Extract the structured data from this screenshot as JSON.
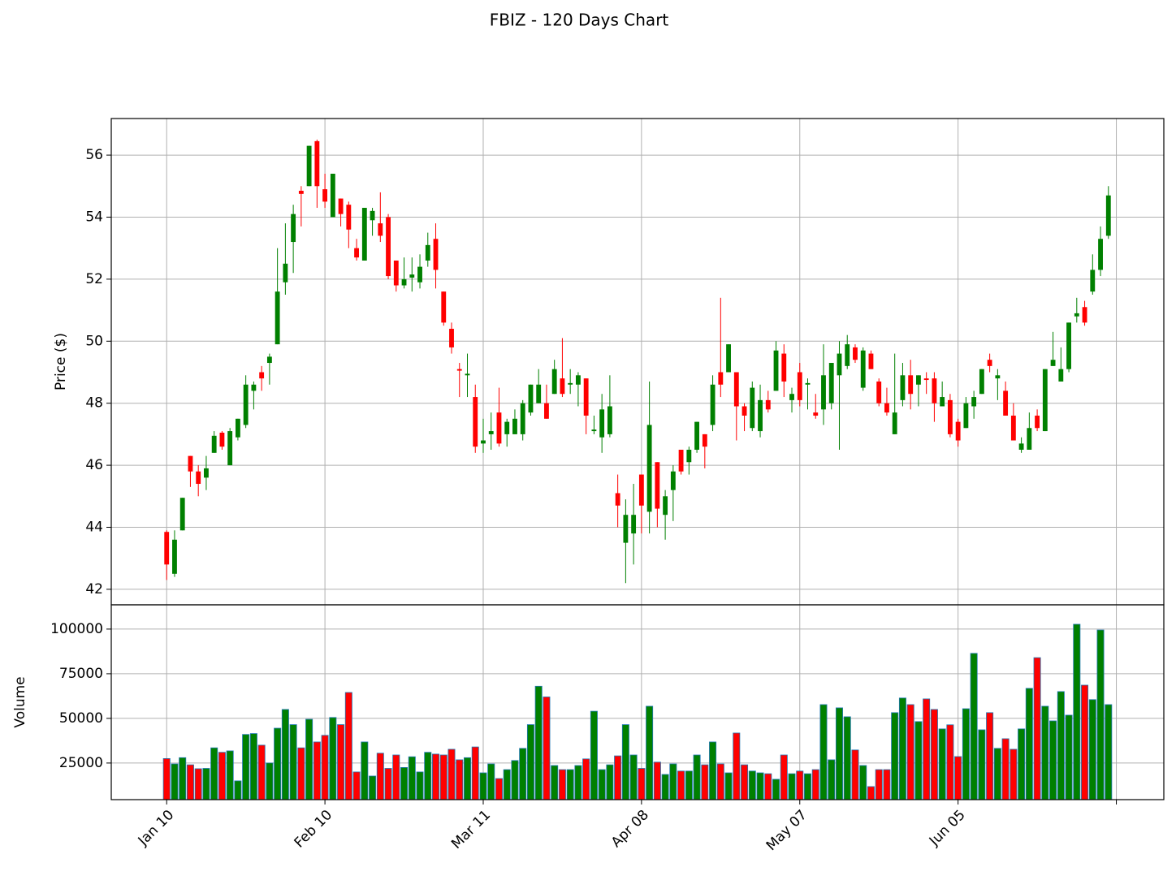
{
  "title": "FBIZ - 120 Days Chart",
  "chart_data": [
    {
      "type": "candlestick",
      "ylabel": "Price ($)",
      "ylim": [
        41.5,
        57.18
      ],
      "yticks": [
        42,
        44,
        46,
        48,
        50,
        52,
        54,
        56
      ],
      "grid": true,
      "up_color": "green",
      "down_color": "red",
      "open": [
        43.85,
        42.5,
        43.9,
        46.3,
        45.8,
        45.6,
        46.4,
        47.05,
        46.0,
        46.9,
        47.3,
        48.4,
        49.0,
        49.3,
        49.9,
        51.9,
        53.2,
        54.85,
        55.0,
        56.45,
        54.9,
        54.0,
        54.6,
        54.4,
        53.0,
        52.6,
        53.9,
        53.8,
        54.0,
        52.6,
        51.8,
        52.05,
        51.9,
        52.6,
        53.3,
        51.6,
        50.4,
        49.1,
        48.9,
        48.2,
        46.7,
        47.0,
        47.7,
        47.0,
        47.0,
        47.0,
        47.7,
        48.0,
        48.0,
        48.3,
        48.8,
        48.6,
        48.6,
        48.8,
        47.1,
        46.9,
        47.0,
        45.1,
        43.5,
        43.8,
        45.7,
        44.5,
        46.1,
        44.4,
        45.2,
        46.5,
        46.1,
        46.5,
        47.0,
        47.3,
        49.0,
        49.0,
        49.0,
        47.9,
        47.2,
        47.1,
        48.1,
        48.4,
        49.6,
        48.1,
        49.0,
        48.6,
        47.7,
        47.8,
        48.0,
        48.9,
        49.2,
        49.8,
        48.5,
        49.6,
        48.7,
        48.0,
        47.0,
        48.1,
        48.9,
        48.6,
        48.8,
        48.8,
        47.9,
        48.1,
        47.4,
        47.2,
        47.9,
        48.3,
        49.4,
        48.8,
        48.4,
        47.6,
        46.5,
        46.5,
        47.6,
        47.1,
        49.2,
        48.7,
        49.1,
        50.8,
        51.1,
        51.6,
        52.3,
        53.4
      ],
      "high": [
        43.9,
        43.9,
        44.95,
        46.3,
        46.0,
        46.3,
        47.1,
        47.1,
        47.2,
        47.5,
        48.9,
        48.7,
        49.2,
        49.6,
        53.0,
        53.8,
        54.4,
        55.0,
        56.3,
        56.5,
        55.4,
        55.4,
        54.6,
        54.5,
        53.3,
        54.3,
        54.3,
        54.8,
        54.1,
        52.6,
        52.7,
        52.7,
        52.8,
        53.5,
        53.8,
        51.6,
        50.6,
        49.3,
        49.6,
        48.6,
        47.5,
        47.7,
        48.5,
        47.5,
        47.8,
        48.1,
        48.6,
        49.1,
        48.6,
        49.4,
        50.1,
        49.1,
        49.0,
        48.8,
        47.6,
        48.3,
        48.9,
        45.7,
        44.9,
        45.4,
        45.7,
        48.7,
        46.1,
        45.2,
        46.0,
        46.5,
        46.6,
        47.4,
        47.0,
        48.9,
        51.4,
        49.9,
        49.0,
        48.0,
        48.7,
        48.6,
        48.4,
        50.0,
        49.9,
        48.5,
        49.3,
        48.8,
        48.3,
        49.9,
        49.3,
        50.0,
        50.2,
        49.9,
        49.8,
        49.7,
        48.8,
        48.5,
        49.6,
        49.3,
        49.4,
        48.9,
        49.0,
        49.0,
        48.7,
        48.3,
        47.5,
        48.2,
        48.4,
        49.1,
        49.6,
        49.1,
        48.7,
        48.0,
        46.9,
        47.7,
        47.8,
        49.1,
        50.3,
        49.8,
        50.6,
        51.4,
        51.3,
        52.8,
        53.7,
        55.0
      ],
      "low": [
        42.3,
        42.4,
        43.9,
        45.3,
        45.0,
        45.2,
        46.4,
        46.5,
        46.0,
        46.8,
        47.2,
        47.8,
        48.4,
        48.6,
        49.9,
        51.5,
        52.2,
        53.7,
        55.0,
        54.3,
        54.3,
        54.0,
        53.7,
        53.0,
        52.6,
        52.6,
        53.4,
        53.2,
        52.0,
        51.6,
        51.7,
        51.6,
        51.7,
        52.4,
        51.7,
        50.5,
        49.6,
        48.2,
        48.2,
        46.4,
        46.4,
        46.5,
        46.6,
        46.6,
        47.0,
        46.8,
        47.6,
        48.0,
        47.5,
        48.3,
        48.2,
        48.3,
        47.9,
        47.0,
        47.0,
        46.4,
        46.9,
        44.0,
        42.2,
        42.8,
        43.8,
        43.8,
        44.0,
        43.6,
        44.2,
        45.7,
        45.7,
        46.4,
        45.9,
        47.1,
        48.2,
        49.0,
        46.8,
        47.1,
        47.1,
        46.9,
        47.7,
        48.4,
        48.2,
        47.7,
        47.9,
        47.8,
        47.5,
        47.3,
        47.8,
        46.5,
        49.1,
        49.3,
        48.4,
        49.1,
        47.9,
        47.6,
        47.0,
        47.9,
        47.8,
        47.9,
        48.3,
        47.4,
        47.9,
        46.9,
        46.6,
        47.2,
        47.5,
        48.3,
        49.0,
        48.1,
        47.6,
        46.8,
        46.4,
        46.5,
        47.1,
        47.1,
        49.2,
        48.7,
        49.0,
        50.6,
        50.5,
        51.5,
        52.1,
        53.3
      ],
      "close": [
        42.8,
        43.6,
        44.95,
        45.8,
        45.4,
        45.9,
        46.95,
        46.6,
        47.1,
        47.5,
        48.6,
        48.6,
        48.8,
        49.5,
        51.6,
        52.5,
        54.1,
        54.75,
        56.3,
        55.0,
        54.5,
        55.4,
        54.1,
        53.6,
        52.7,
        54.3,
        54.2,
        53.4,
        52.1,
        51.8,
        52.0,
        52.15,
        52.4,
        53.1,
        52.3,
        50.6,
        49.8,
        49.05,
        48.95,
        46.6,
        46.8,
        47.1,
        46.7,
        47.4,
        47.5,
        48.0,
        48.6,
        48.6,
        47.5,
        49.1,
        48.3,
        48.65,
        48.9,
        47.6,
        47.15,
        47.8,
        47.9,
        44.7,
        44.4,
        44.4,
        44.7,
        47.3,
        44.6,
        45.0,
        45.8,
        45.8,
        46.5,
        47.4,
        46.6,
        48.6,
        48.6,
        49.9,
        47.9,
        47.6,
        48.5,
        48.1,
        47.8,
        49.7,
        48.7,
        48.3,
        48.1,
        48.65,
        47.6,
        48.9,
        49.3,
        49.6,
        49.9,
        49.4,
        49.7,
        49.1,
        48.0,
        47.7,
        47.7,
        48.9,
        48.3,
        48.9,
        48.75,
        48.0,
        48.2,
        47.0,
        46.8,
        48.0,
        48.2,
        49.1,
        49.2,
        48.9,
        47.6,
        46.8,
        46.7,
        47.2,
        47.2,
        49.1,
        49.4,
        49.1,
        50.6,
        50.9,
        50.6,
        52.3,
        53.3,
        54.7
      ]
    },
    {
      "type": "bar",
      "ylabel": "Volume",
      "ylim": [
        4500,
        113600
      ],
      "yticks": [
        25000,
        50000,
        75000,
        100000
      ],
      "grid": true,
      "xlim": [
        -7,
        126
      ],
      "xticks": [
        {
          "value": 0,
          "label": "Jan 10"
        },
        {
          "value": 20,
          "label": "Feb 10"
        },
        {
          "value": 40,
          "label": "Mar 11"
        },
        {
          "value": 60,
          "label": "Apr 08"
        },
        {
          "value": 80,
          "label": "May 07"
        },
        {
          "value": 100,
          "label": "Jun 05"
        },
        {
          "value": 120,
          "label": null
        }
      ],
      "edge_color": "#1f77b4",
      "values": [
        27500,
        24500,
        28000,
        24000,
        21800,
        22000,
        33500,
        31000,
        31800,
        15000,
        41000,
        41500,
        35000,
        25000,
        44500,
        55000,
        46500,
        33500,
        49500,
        36800,
        40500,
        50500,
        46500,
        64500,
        20000,
        36800,
        17700,
        30500,
        22000,
        29500,
        22500,
        28500,
        20000,
        31000,
        30000,
        29500,
        32700,
        26800,
        28000,
        34000,
        19500,
        24500,
        16300,
        21300,
        26400,
        33200,
        46500,
        68000,
        62000,
        23600,
        21300,
        21300,
        23600,
        27300,
        54000,
        21300,
        24000,
        29000,
        46500,
        29500,
        22000,
        56800,
        25500,
        18600,
        24500,
        20500,
        20500,
        29500,
        24000,
        36800,
        24500,
        19500,
        41800,
        24000,
        20500,
        19500,
        19000,
        15900,
        29500,
        19000,
        20500,
        19000,
        21300,
        57700,
        26800,
        55900,
        50900,
        32300,
        23600,
        11800,
        21300,
        21300,
        53200,
        61400,
        57700,
        48200,
        60900,
        55000,
        44100,
        46400,
        28600,
        55400,
        86400,
        43600,
        53200,
        33200,
        38600,
        32700,
        44100,
        66800,
        84000,
        56800,
        48600,
        65000,
        51800,
        102700,
        68600,
        60500,
        99500,
        57700
      ]
    }
  ]
}
